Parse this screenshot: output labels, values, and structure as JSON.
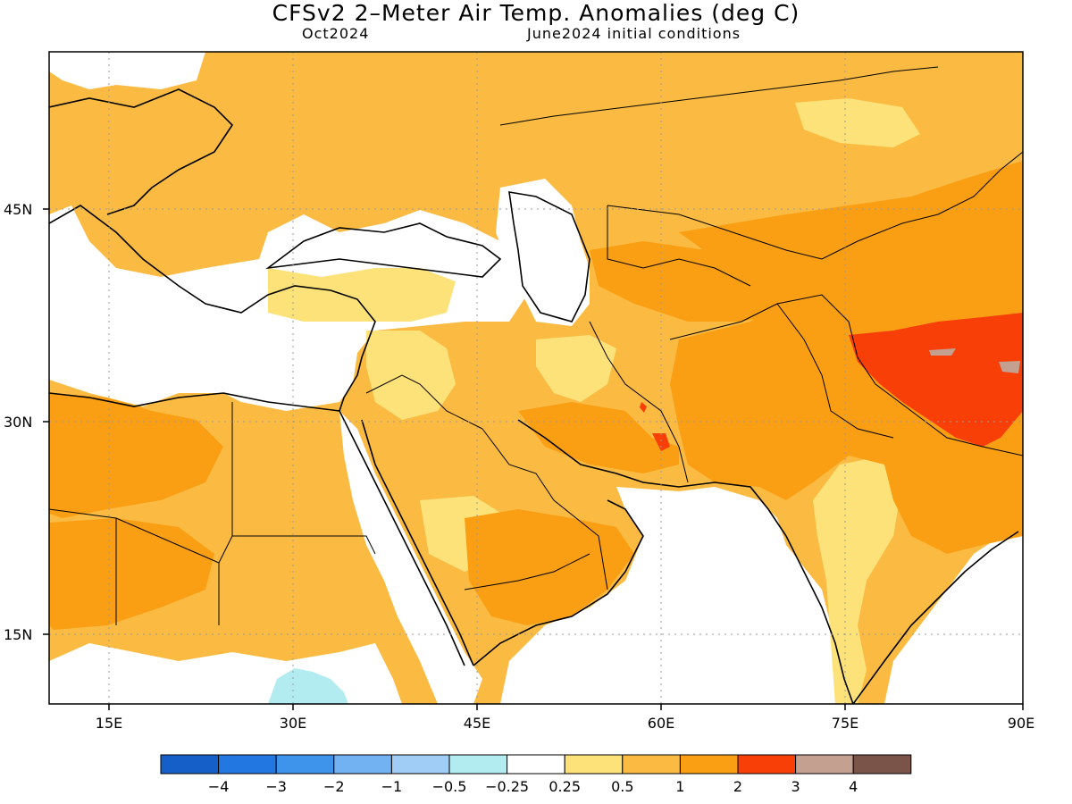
{
  "title": "CFSv2 2–Meter Air Temp. Anomalies (deg C)",
  "valid_month": "Oct2024",
  "initial_conditions": "June2024 initial conditions",
  "colors": {
    "neg4": "#1560c8",
    "neg3": "#2277e0",
    "neg2": "#3e93ea",
    "neg1": "#73b2f2",
    "neg05": "#a0cdf5",
    "neg025": "#b3ecf0",
    "zero": "#ffffff",
    "pos025": "#fde27a",
    "pos05": "#fbbb42",
    "pos1": "#fa9f14",
    "pos2": "#f93f08",
    "pos3": "#c4a090",
    "pos4": "#7a5448"
  },
  "chart_data": {
    "type": "heatmap",
    "title": "CFSv2 2–Meter Air Temp. Anomalies (deg C)",
    "subtitle_left": "Oct2024",
    "subtitle_right": "June2024 initial conditions",
    "x_ticks": [
      "15E",
      "30E",
      "45E",
      "60E",
      "75E",
      "90E"
    ],
    "y_ticks": [
      "45N",
      "30N",
      "15N"
    ],
    "xlim": [
      10,
      90
    ],
    "ylim": [
      10,
      56
    ],
    "x_tick_values": [
      15,
      30,
      45,
      60,
      75,
      90
    ],
    "y_tick_values": [
      45,
      30,
      15
    ],
    "legend_labels": [
      "-4",
      "-3",
      "-2",
      "-1",
      "-0.5",
      "-0.25",
      "0.25",
      "0.5",
      "1",
      "2",
      "3",
      "4"
    ],
    "legend_colors": [
      "#1560c8",
      "#2277e0",
      "#3e93ea",
      "#73b2f2",
      "#a0cdf5",
      "#b3ecf0",
      "#ffffff",
      "#fde27a",
      "#fbbb42",
      "#fa9f14",
      "#f93f08",
      "#c4a090",
      "#7a5448"
    ],
    "grid": true,
    "legend_placement": "bottom"
  }
}
